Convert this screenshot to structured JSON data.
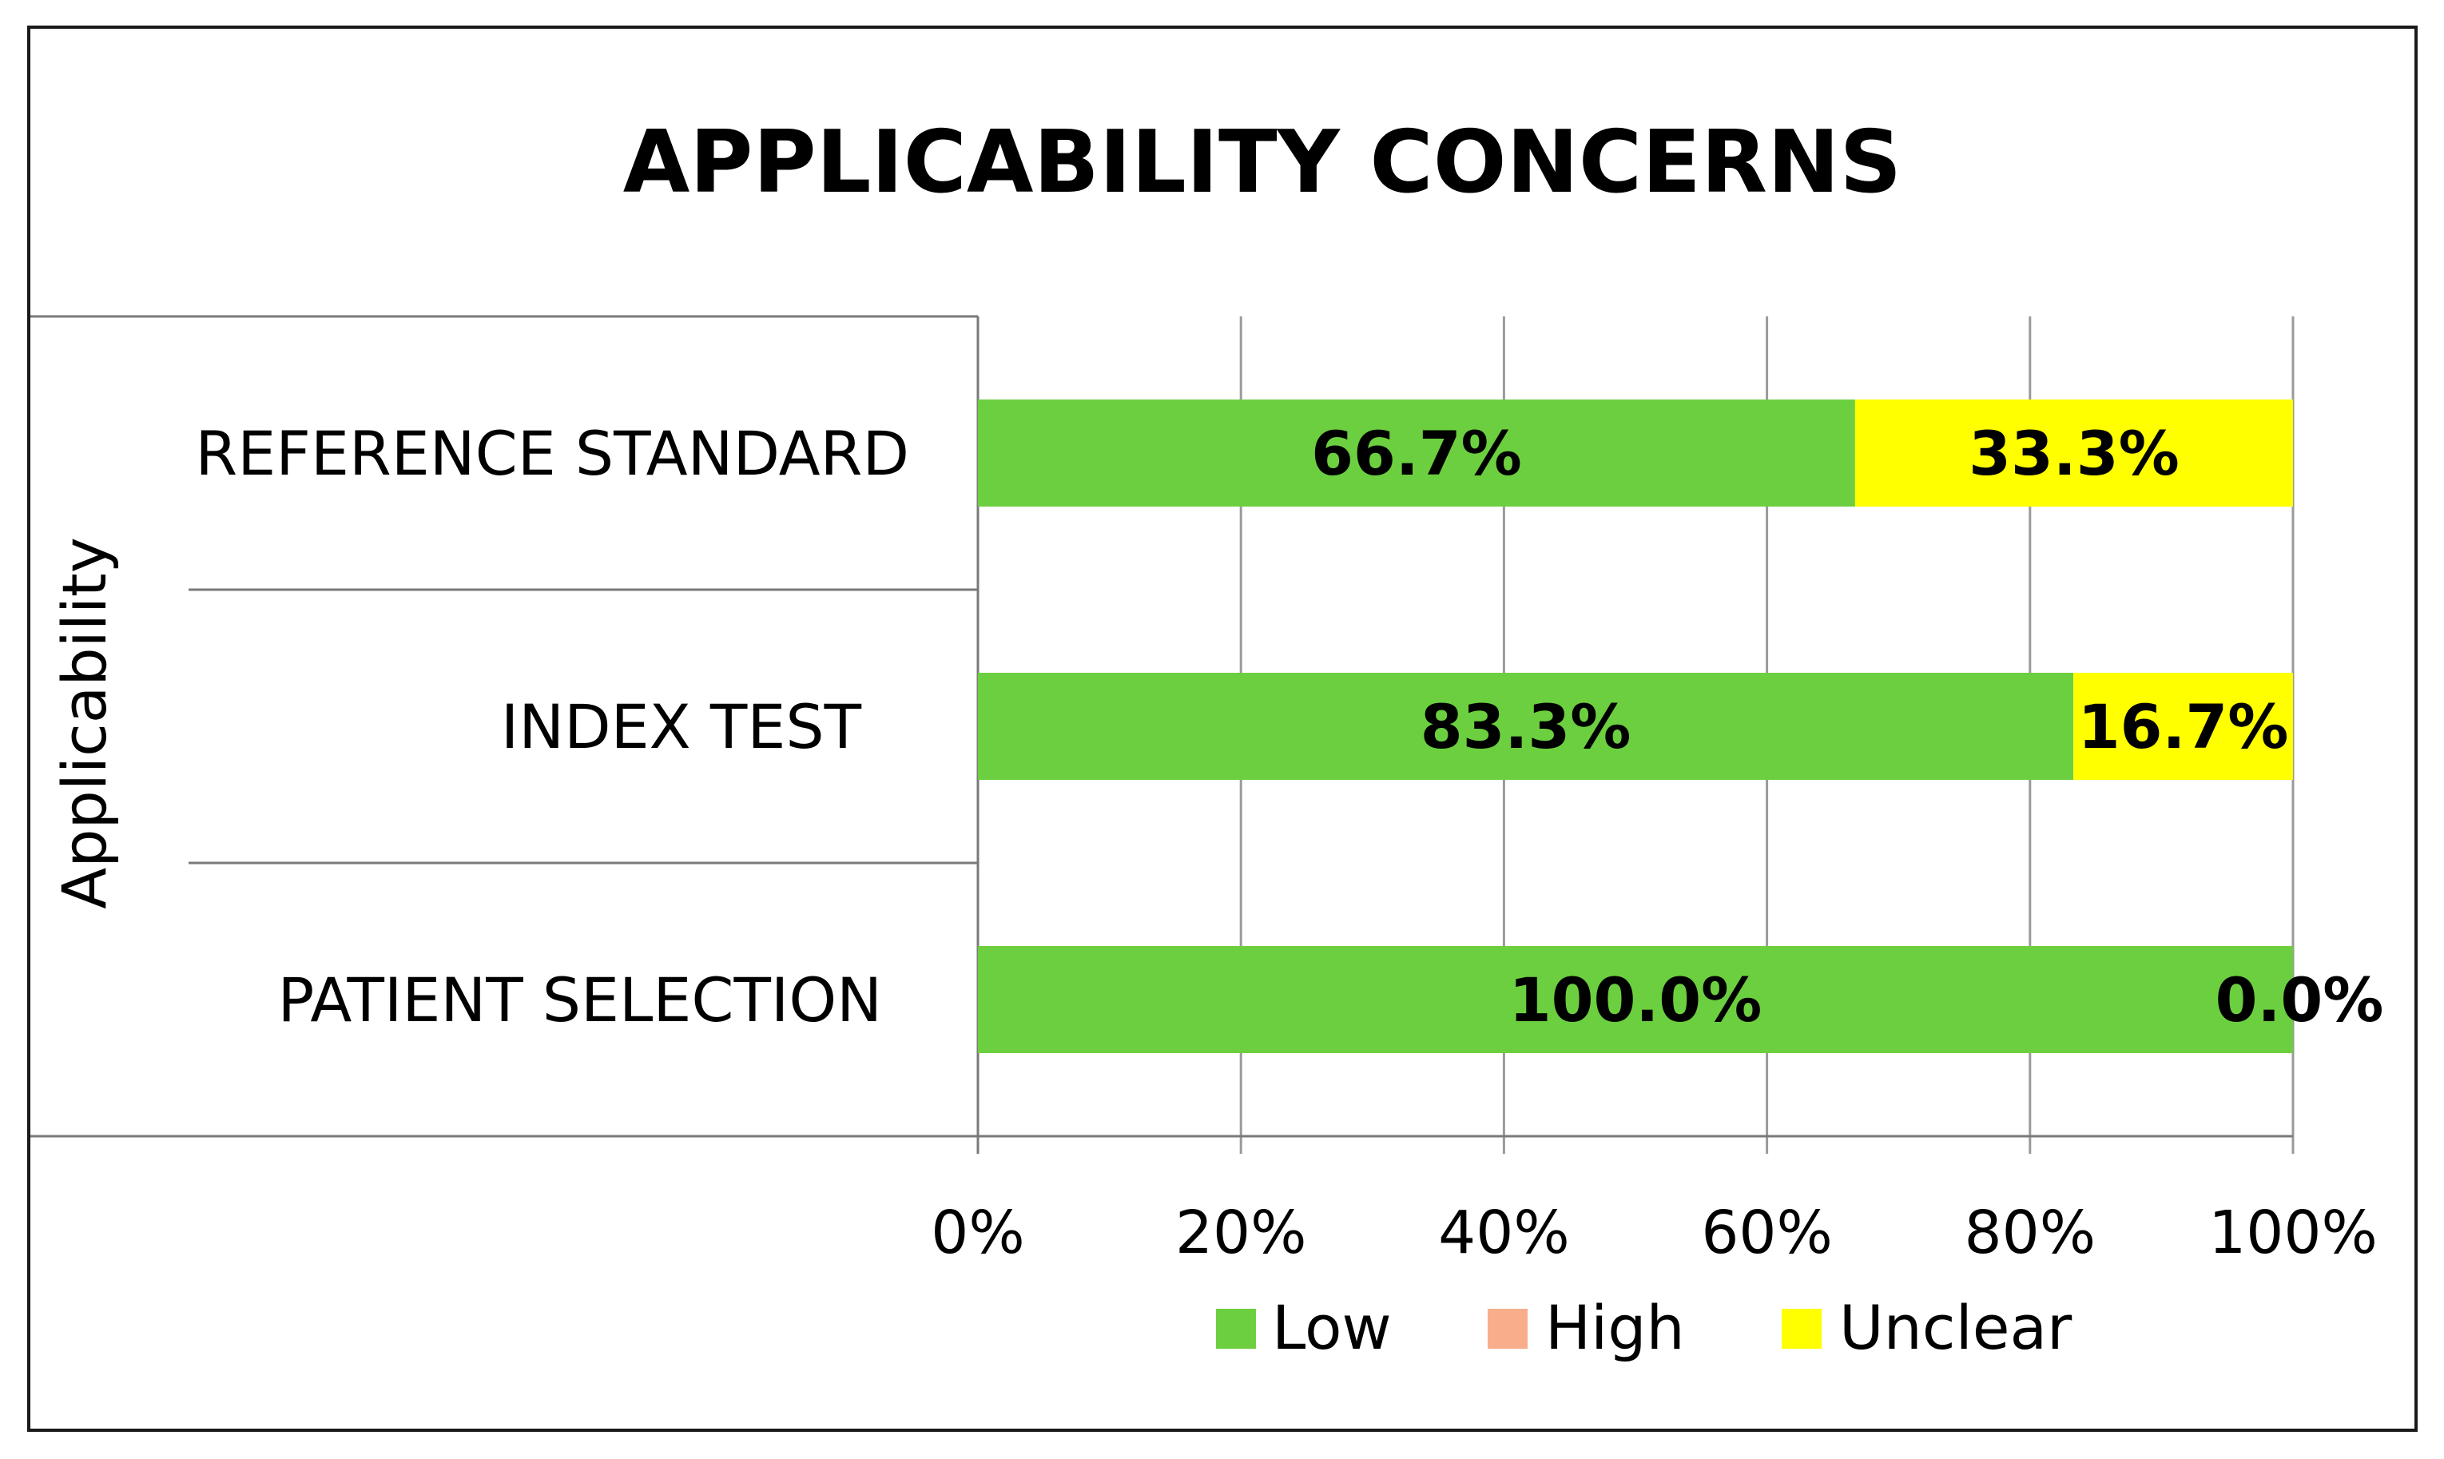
{
  "chart_data": {
    "type": "bar",
    "orientation": "horizontal",
    "stacked": true,
    "title": "APPLICABILITY CONCERNS",
    "ylabel": "Applicability",
    "xlabel": "",
    "categories": [
      "REFERENCE STANDARD",
      "INDEX TEST",
      "PATIENT SELECTION"
    ],
    "series": [
      {
        "name": "Low",
        "color": "#6ccf3f",
        "values": [
          66.7,
          83.3,
          100.0
        ],
        "labels": [
          "66.7%",
          "83.3%",
          "100.0%"
        ]
      },
      {
        "name": "High",
        "color": "#f8ae8a",
        "values": [
          0,
          0,
          0
        ],
        "labels": [
          "",
          "",
          ""
        ]
      },
      {
        "name": "Unclear",
        "color": "#ffff00",
        "values": [
          33.3,
          16.7,
          0.0
        ],
        "labels": [
          "33.3%",
          "16.7%",
          "0.0%"
        ]
      }
    ],
    "xlim": [
      0,
      100
    ],
    "xticks": [
      "0%",
      "20%",
      "40%",
      "60%",
      "80%",
      "100%"
    ],
    "grid": true,
    "legend_position": "bottom"
  }
}
